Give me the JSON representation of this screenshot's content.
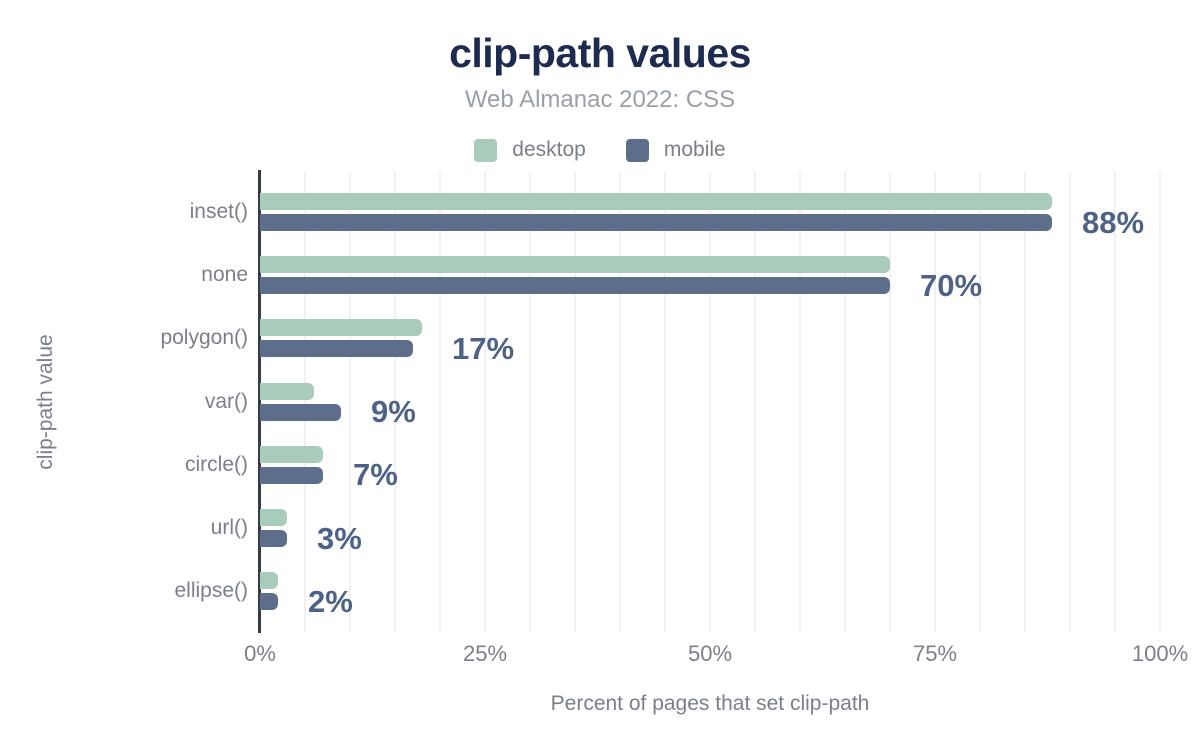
{
  "title": "clip-path values",
  "subtitle": "Web Almanac 2022: CSS",
  "legend": {
    "items": [
      {
        "label": "desktop",
        "color": "#a8cbbb"
      },
      {
        "label": "mobile",
        "color": "#5d6e8a"
      }
    ]
  },
  "chart_data": {
    "type": "bar",
    "orientation": "horizontal",
    "title": "clip-path values",
    "subtitle": "Web Almanac 2022: CSS",
    "categories": [
      "inset()",
      "none",
      "polygon()",
      "var()",
      "circle()",
      "url()",
      "ellipse()"
    ],
    "series": [
      {
        "name": "desktop",
        "color": "#a8cbbb",
        "values": [
          88,
          70,
          18,
          6,
          7,
          3,
          2
        ]
      },
      {
        "name": "mobile",
        "color": "#5d6e8a",
        "values": [
          88,
          70,
          17,
          9,
          7,
          3,
          2
        ]
      }
    ],
    "value_labels": [
      "88%",
      "70%",
      "17%",
      "9%",
      "7%",
      "3%",
      "2%"
    ],
    "xlabel": "Percent of pages that set clip-path",
    "ylabel": "clip-path value",
    "xlim": [
      0,
      100
    ],
    "x_ticks": [
      {
        "value": 0,
        "label": "0%"
      },
      {
        "value": 25,
        "label": "25%"
      },
      {
        "value": 50,
        "label": "50%"
      },
      {
        "value": 75,
        "label": "75%"
      },
      {
        "value": 100,
        "label": "100%"
      }
    ],
    "grid": {
      "on": true,
      "step": 5,
      "direction": "vertical"
    },
    "legend_position": "top"
  },
  "colors": {
    "background": "#ffffff",
    "title": "#1e2b50",
    "subtitle": "#9aa0a8",
    "axis_text": "#7b8088",
    "value_label": "#4d6286",
    "gridline": "#f1f1f3",
    "axis_line": "#363c45",
    "desktop": "#a8cbbb",
    "mobile": "#5d6e8a"
  }
}
